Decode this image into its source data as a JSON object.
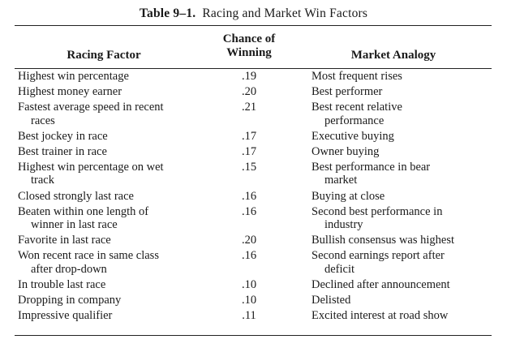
{
  "table": {
    "number": "Table 9–1.",
    "title": "Racing and Market Win Factors",
    "headers": {
      "factor": "Racing Factor",
      "chance_line1": "Chance of",
      "chance_line2": "Winning",
      "market": "Market Analogy"
    },
    "rows": [
      {
        "factor": [
          "Highest win percentage"
        ],
        "chance": ".19",
        "market": [
          "Most frequent rises"
        ]
      },
      {
        "factor": [
          "Highest money earner"
        ],
        "chance": ".20",
        "market": [
          "Best performer"
        ]
      },
      {
        "factor": [
          "Fastest average speed in recent",
          "races"
        ],
        "chance": ".21",
        "market": [
          "Best recent relative",
          "performance"
        ]
      },
      {
        "factor": [
          "Best jockey in race"
        ],
        "chance": ".17",
        "market": [
          "Executive buying"
        ]
      },
      {
        "factor": [
          "Best trainer in race"
        ],
        "chance": ".17",
        "market": [
          "Owner buying"
        ]
      },
      {
        "factor": [
          "Highest win percentage on wet",
          "track"
        ],
        "chance": ".15",
        "market": [
          "Best performance in bear",
          "market"
        ]
      },
      {
        "factor": [
          "Closed strongly last race"
        ],
        "chance": ".16",
        "market": [
          "Buying at close"
        ]
      },
      {
        "factor": [
          "Beaten within one length of",
          "winner in last race"
        ],
        "chance": ".16",
        "market": [
          "Second best performance in",
          "industry"
        ]
      },
      {
        "factor": [
          "Favorite in last race"
        ],
        "chance": ".20",
        "market": [
          "Bullish consensus was highest"
        ]
      },
      {
        "factor": [
          "Won recent race in same class",
          "after drop-down"
        ],
        "chance": ".16",
        "market": [
          "Second earnings report after",
          "deficit"
        ]
      },
      {
        "factor": [
          "In trouble last race"
        ],
        "chance": ".10",
        "market": [
          "Declined after announcement"
        ]
      },
      {
        "factor": [
          "Dropping in company"
        ],
        "chance": ".10",
        "market": [
          "Delisted"
        ]
      },
      {
        "factor": [
          "Impressive qualifier"
        ],
        "chance": ".11",
        "market": [
          "Excited interest at road show"
        ]
      }
    ]
  }
}
